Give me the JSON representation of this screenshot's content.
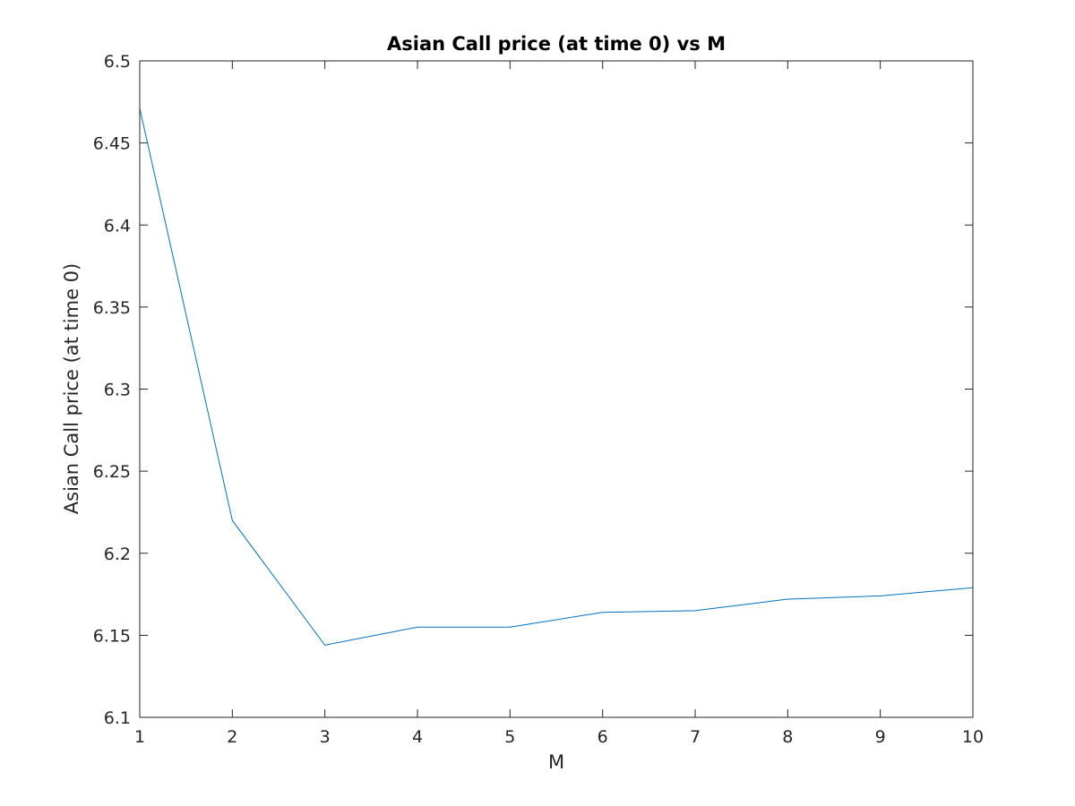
{
  "chart_data": {
    "type": "line",
    "title": "Asian Call price (at time 0) vs M",
    "xlabel": "M",
    "ylabel": "Asian Call price (at time 0)",
    "x": [
      1,
      2,
      3,
      4,
      5,
      6,
      7,
      8,
      9,
      10
    ],
    "series": [
      {
        "values": [
          6.471,
          6.22,
          6.144,
          6.155,
          6.155,
          6.164,
          6.165,
          6.172,
          6.174,
          6.179
        ],
        "color": "#0072BD"
      }
    ],
    "xlim": [
      1,
      10
    ],
    "ylim": [
      6.1,
      6.5
    ],
    "xticks": [
      1,
      2,
      3,
      4,
      5,
      6,
      7,
      8,
      9,
      10
    ],
    "xtick_labels": [
      "1",
      "2",
      "3",
      "4",
      "5",
      "6",
      "7",
      "8",
      "9",
      "10"
    ],
    "yticks": [
      6.1,
      6.15,
      6.2,
      6.25,
      6.3,
      6.35,
      6.4,
      6.45,
      6.5
    ],
    "ytick_labels": [
      "6.1",
      "6.15",
      "6.2",
      "6.25",
      "6.3",
      "6.35",
      "6.4",
      "6.45",
      "6.5"
    ],
    "grid": false,
    "box": true,
    "legend": "none"
  }
}
